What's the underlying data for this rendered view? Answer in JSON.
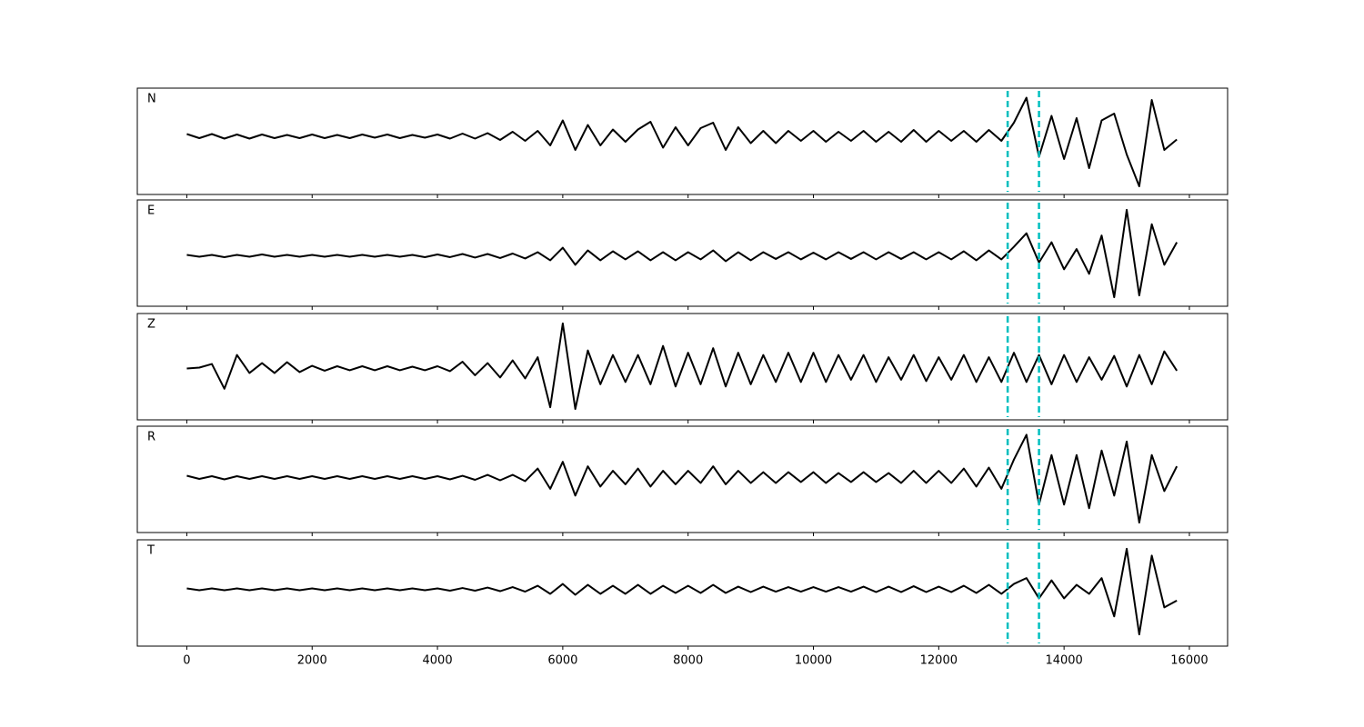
{
  "chart_data": [
    {
      "type": "line",
      "title": "N",
      "x": [
        0,
        200,
        400,
        600,
        800,
        1000,
        1200,
        1400,
        1600,
        1800,
        2000,
        2200,
        2400,
        2600,
        2800,
        3000,
        3200,
        3400,
        3600,
        3800,
        4000,
        4200,
        4400,
        4600,
        4800,
        5000,
        5200,
        5400,
        5600,
        5800,
        6000,
        6200,
        6400,
        6600,
        6800,
        7000,
        7200,
        7400,
        7600,
        7800,
        8000,
        8200,
        8400,
        8600,
        8800,
        9000,
        9200,
        9400,
        9600,
        9800,
        10000,
        10200,
        10400,
        10600,
        10800,
        11000,
        11200,
        11400,
        11600,
        11800,
        12000,
        12200,
        12400,
        12600,
        12800,
        13000,
        13200,
        13400,
        13600,
        13800,
        14000,
        14200,
        14400,
        14600,
        14800,
        15000,
        15200,
        15400,
        15600,
        15800
      ],
      "series": [
        {
          "color": "#000000",
          "values": [
            0.05,
            -0.04,
            0.05,
            -0.05,
            0.04,
            -0.05,
            0.04,
            -0.04,
            0.03,
            -0.04,
            0.04,
            -0.04,
            0.03,
            -0.04,
            0.04,
            -0.03,
            0.04,
            -0.04,
            0.03,
            -0.03,
            0.04,
            -0.05,
            0.06,
            -0.05,
            0.07,
            -0.08,
            0.1,
            -0.1,
            0.12,
            -0.2,
            0.35,
            -0.3,
            0.25,
            -0.2,
            0.15,
            -0.12,
            0.15,
            0.32,
            -0.25,
            0.2,
            -0.2,
            0.18,
            0.3,
            -0.3,
            0.2,
            -0.15,
            0.12,
            -0.15,
            0.12,
            -0.1,
            0.12,
            -0.12,
            0.1,
            -0.1,
            0.12,
            -0.12,
            0.1,
            -0.12,
            0.14,
            -0.12,
            0.12,
            -0.1,
            0.12,
            -0.12,
            0.14,
            -0.1,
            0.3,
            0.85,
            -0.45,
            0.45,
            -0.5,
            0.4,
            -0.7,
            0.35,
            0.5,
            -0.4,
            -1.1,
            0.8,
            -0.3,
            -0.07
          ]
        }
      ],
      "xlim": [
        -790,
        16610
      ],
      "ylim": [
        -1.28,
        1.06
      ],
      "xticks": [
        0,
        2000,
        4000,
        6000,
        8000,
        10000,
        12000,
        14000,
        16000
      ],
      "vlines": {
        "values": [
          13100,
          13600
        ],
        "color": "#00bfbf"
      }
    },
    {
      "type": "line",
      "title": "E",
      "x": [
        0,
        200,
        400,
        600,
        800,
        1000,
        1200,
        1400,
        1600,
        1800,
        2000,
        2200,
        2400,
        2600,
        2800,
        3000,
        3200,
        3400,
        3600,
        3800,
        4000,
        4200,
        4400,
        4600,
        4800,
        5000,
        5200,
        5400,
        5600,
        5800,
        6000,
        6200,
        6400,
        6600,
        6800,
        7000,
        7200,
        7400,
        7600,
        7800,
        8000,
        8200,
        8400,
        8600,
        8800,
        9000,
        9200,
        9400,
        9600,
        9800,
        10000,
        10200,
        10400,
        10600,
        10800,
        11000,
        11200,
        11400,
        11600,
        11800,
        12000,
        12200,
        12400,
        12600,
        12800,
        13000,
        13200,
        13400,
        13600,
        13800,
        14000,
        14200,
        14400,
        14600,
        14800,
        15000,
        15200,
        15400,
        15600,
        15800
      ],
      "series": [
        {
          "color": "#000000",
          "values": [
            0.02,
            -0.02,
            0.02,
            -0.03,
            0.02,
            -0.02,
            0.03,
            -0.02,
            0.02,
            -0.02,
            0.02,
            -0.02,
            0.02,
            -0.02,
            0.02,
            -0.02,
            0.02,
            -0.02,
            0.02,
            -0.03,
            0.03,
            -0.03,
            0.04,
            -0.04,
            0.04,
            -0.05,
            0.05,
            -0.06,
            0.08,
            -0.1,
            0.18,
            -0.2,
            0.12,
            -0.1,
            0.1,
            -0.08,
            0.1,
            -0.1,
            0.08,
            -0.1,
            0.08,
            -0.08,
            0.12,
            -0.12,
            0.08,
            -0.1,
            0.08,
            -0.07,
            0.08,
            -0.08,
            0.07,
            -0.08,
            0.08,
            -0.07,
            0.08,
            -0.08,
            0.08,
            -0.07,
            0.08,
            -0.08,
            0.08,
            -0.08,
            0.1,
            -0.1,
            0.12,
            -0.08,
            0.2,
            0.5,
            -0.15,
            0.3,
            -0.3,
            0.15,
            -0.4,
            0.45,
            -0.92,
            1.02,
            -0.88,
            0.7,
            -0.2,
            0.3
          ]
        }
      ],
      "xlim": [
        -790,
        16610
      ],
      "ylim": [
        -1.12,
        1.24
      ],
      "xticks": [
        0,
        2000,
        4000,
        6000,
        8000,
        10000,
        12000,
        14000,
        16000
      ],
      "vlines": {
        "values": [
          13100,
          13600
        ],
        "color": "#00bfbf"
      }
    },
    {
      "type": "line",
      "title": "Z",
      "x": [
        0,
        200,
        400,
        600,
        800,
        1000,
        1200,
        1400,
        1600,
        1800,
        2000,
        2200,
        2400,
        2600,
        2800,
        3000,
        3200,
        3400,
        3600,
        3800,
        4000,
        4200,
        4400,
        4600,
        4800,
        5000,
        5200,
        5400,
        5600,
        5800,
        6000,
        6200,
        6400,
        6600,
        6800,
        7000,
        7200,
        7400,
        7600,
        7800,
        8000,
        8200,
        8400,
        8600,
        8800,
        9000,
        9200,
        9400,
        9600,
        9800,
        10000,
        10200,
        10400,
        10600,
        10800,
        11000,
        11200,
        11400,
        11600,
        11800,
        12000,
        12200,
        12400,
        12600,
        12800,
        13000,
        13200,
        13400,
        13600,
        13800,
        14000,
        14200,
        14400,
        14600,
        14800,
        15000,
        15200,
        15400,
        15600,
        15800
      ],
      "series": [
        {
          "color": "#000000",
          "values": [
            0.0,
            0.02,
            0.1,
            -0.45,
            0.3,
            -0.1,
            0.12,
            -0.1,
            0.14,
            -0.08,
            0.06,
            -0.05,
            0.05,
            -0.04,
            0.05,
            -0.04,
            0.05,
            -0.04,
            0.04,
            -0.04,
            0.05,
            -0.06,
            0.15,
            -0.15,
            0.12,
            -0.2,
            0.18,
            -0.22,
            0.25,
            -0.86,
            1.0,
            -0.9,
            0.4,
            -0.35,
            0.3,
            -0.3,
            0.3,
            -0.35,
            0.5,
            -0.4,
            0.35,
            -0.35,
            0.45,
            -0.4,
            0.35,
            -0.35,
            0.3,
            -0.3,
            0.35,
            -0.3,
            0.35,
            -0.3,
            0.3,
            -0.25,
            0.3,
            -0.3,
            0.25,
            -0.25,
            0.3,
            -0.28,
            0.25,
            -0.25,
            0.3,
            -0.3,
            0.25,
            -0.3,
            0.35,
            -0.3,
            0.3,
            -0.35,
            0.3,
            -0.3,
            0.25,
            -0.25,
            0.28,
            -0.4,
            0.3,
            -0.35,
            0.38,
            -0.05
          ]
        }
      ],
      "xlim": [
        -790,
        16610
      ],
      "ylim": [
        -1.14,
        1.22
      ],
      "xticks": [
        0,
        2000,
        4000,
        6000,
        8000,
        10000,
        12000,
        14000,
        16000
      ],
      "vlines": {
        "values": [
          13100,
          13600
        ],
        "color": "#00bfbf"
      }
    },
    {
      "type": "line",
      "title": "R",
      "x": [
        0,
        200,
        400,
        600,
        800,
        1000,
        1200,
        1400,
        1600,
        1800,
        2000,
        2200,
        2400,
        2600,
        2800,
        3000,
        3200,
        3400,
        3600,
        3800,
        4000,
        4200,
        4400,
        4600,
        4800,
        5000,
        5200,
        5400,
        5600,
        5800,
        6000,
        6200,
        6400,
        6600,
        6800,
        7000,
        7200,
        7400,
        7600,
        7800,
        8000,
        8200,
        8400,
        8600,
        8800,
        9000,
        9200,
        9400,
        9600,
        9800,
        10000,
        10200,
        10400,
        10600,
        10800,
        11000,
        11200,
        11400,
        11600,
        11800,
        12000,
        12200,
        12400,
        12600,
        12800,
        13000,
        13200,
        13400,
        13600,
        13800,
        14000,
        14200,
        14400,
        14600,
        14800,
        15000,
        15200,
        15400,
        15600,
        15800
      ],
      "series": [
        {
          "color": "#000000",
          "values": [
            0.04,
            -0.03,
            0.03,
            -0.04,
            0.03,
            -0.03,
            0.03,
            -0.03,
            0.03,
            -0.03,
            0.03,
            -0.03,
            0.03,
            -0.03,
            0.03,
            -0.03,
            0.03,
            -0.03,
            0.03,
            -0.03,
            0.03,
            -0.04,
            0.04,
            -0.05,
            0.06,
            -0.06,
            0.06,
            -0.08,
            0.2,
            -0.25,
            0.35,
            -0.4,
            0.25,
            -0.2,
            0.15,
            -0.15,
            0.2,
            -0.2,
            0.15,
            -0.15,
            0.15,
            -0.12,
            0.25,
            -0.15,
            0.15,
            -0.12,
            0.12,
            -0.12,
            0.12,
            -0.1,
            0.12,
            -0.12,
            0.1,
            -0.1,
            0.12,
            -0.1,
            0.1,
            -0.12,
            0.15,
            -0.12,
            0.15,
            -0.12,
            0.2,
            -0.2,
            0.22,
            -0.25,
            0.4,
            0.95,
            -0.6,
            0.5,
            -0.6,
            0.5,
            -0.68,
            0.6,
            -0.4,
            0.8,
            -1.0,
            0.5,
            -0.3,
            0.25
          ]
        }
      ],
      "xlim": [
        -790,
        16610
      ],
      "ylim": [
        -1.22,
        1.14
      ],
      "xticks": [
        0,
        2000,
        4000,
        6000,
        8000,
        10000,
        12000,
        14000,
        16000
      ],
      "vlines": {
        "values": [
          13100,
          13600
        ],
        "color": "#00bfbf"
      }
    },
    {
      "type": "line",
      "title": "T",
      "x": [
        0,
        200,
        400,
        600,
        800,
        1000,
        1200,
        1400,
        1600,
        1800,
        2000,
        2200,
        2400,
        2600,
        2800,
        3000,
        3200,
        3400,
        3600,
        3800,
        4000,
        4200,
        4400,
        4600,
        4800,
        5000,
        5200,
        5400,
        5600,
        5800,
        6000,
        6200,
        6400,
        6600,
        6800,
        7000,
        7200,
        7400,
        7600,
        7800,
        8000,
        8200,
        8400,
        8600,
        8800,
        9000,
        9200,
        9400,
        9600,
        9800,
        10000,
        10200,
        10400,
        10600,
        10800,
        11000,
        11200,
        11400,
        11600,
        11800,
        12000,
        12200,
        12400,
        12600,
        12800,
        13000,
        13200,
        13400,
        13600,
        13800,
        14000,
        14200,
        14400,
        14600,
        14800,
        15000,
        15200,
        15400,
        15600,
        15800
      ],
      "series": [
        {
          "color": "#000000",
          "values": [
            0.02,
            -0.02,
            0.02,
            -0.02,
            0.02,
            -0.02,
            0.02,
            -0.02,
            0.02,
            -0.02,
            0.02,
            -0.02,
            0.02,
            -0.02,
            0.02,
            -0.02,
            0.02,
            -0.02,
            0.02,
            -0.02,
            0.02,
            -0.03,
            0.03,
            -0.03,
            0.04,
            -0.04,
            0.05,
            -0.05,
            0.08,
            -0.1,
            0.12,
            -0.12,
            0.1,
            -0.1,
            0.08,
            -0.1,
            0.1,
            -0.1,
            0.08,
            -0.08,
            0.08,
            -0.08,
            0.1,
            -0.08,
            0.06,
            -0.06,
            0.06,
            -0.05,
            0.05,
            -0.05,
            0.05,
            -0.05,
            0.05,
            -0.05,
            0.06,
            -0.06,
            0.06,
            -0.06,
            0.07,
            -0.06,
            0.06,
            -0.06,
            0.08,
            -0.08,
            0.1,
            -0.1,
            0.12,
            0.25,
            -0.2,
            0.2,
            -0.2,
            0.1,
            -0.1,
            0.25,
            -0.6,
            0.9,
            -1.0,
            0.75,
            -0.4,
            -0.25
          ]
        }
      ],
      "xlim": [
        -790,
        16610
      ],
      "ylim": [
        -1.26,
        1.1
      ],
      "xticks": [
        0,
        2000,
        4000,
        6000,
        8000,
        10000,
        12000,
        14000,
        16000
      ],
      "vlines": {
        "values": [
          13100,
          13600
        ],
        "color": "#00bfbf"
      }
    }
  ]
}
